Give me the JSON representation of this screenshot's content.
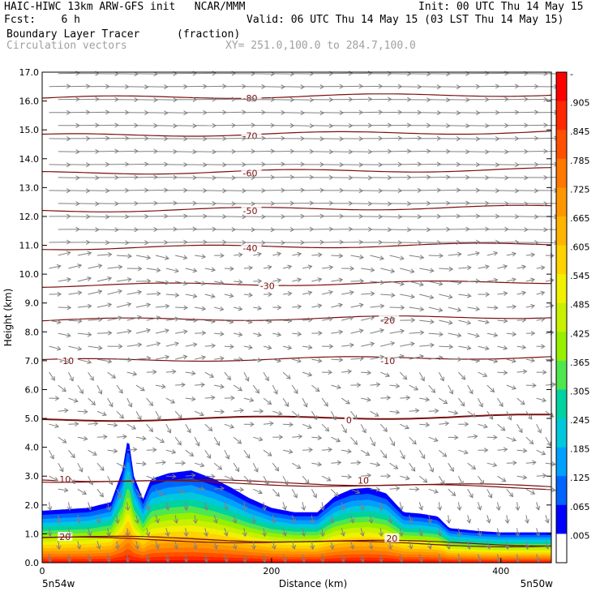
{
  "header": {
    "line1_left": "HAIC-HIWC 13km ARW-GFS init   NCAR/MMM",
    "line1_right": "Init: 00 UTC Thu 14 May 15",
    "fcst_label": "Fcst:    6 h",
    "valid": "Valid: 06 UTC Thu 14 May 15 (03 LST Thu 14 May 15)",
    "field1": "Boundary Layer Tracer",
    "field1_units": "(fraction)",
    "field2": "Circulation vectors",
    "cross_section": "XY= 251.0,100.0 to 284.7,100.0"
  },
  "colors": {
    "contour": "#7a0f0f",
    "vector": "#808080",
    "axis": "#000000"
  },
  "chart_data": {
    "type": "heatmap",
    "xlabel": "Distance (km)",
    "ylabel": "Height (km)",
    "xlim": [
      0,
      444
    ],
    "ylim": [
      0.0,
      17.0
    ],
    "x_ticks": [
      0,
      200,
      400
    ],
    "y_ticks": [
      "0.0",
      "1.0",
      "2.0",
      "3.0",
      "4.0",
      "5.0",
      "6.0",
      "7.0",
      "8.0",
      "9.0",
      "10.0",
      "11.0",
      "12.0",
      "13.0",
      "14.0",
      "15.0",
      "16.0",
      "17.0"
    ],
    "x_endpoint_labels": [
      "5n54w",
      "5n50w"
    ],
    "colorbar": {
      "labels": [
        "-",
        ".905",
        ".845",
        ".785",
        ".725",
        ".665",
        ".605",
        ".545",
        ".485",
        ".425",
        ".365",
        ".305",
        ".245",
        ".185",
        ".125",
        ".065",
        ".005"
      ],
      "colors": [
        "#ff0000",
        "#ff2800",
        "#ff5000",
        "#ff7800",
        "#ff9600",
        "#ffb400",
        "#ffd200",
        "#f0f000",
        "#c8f000",
        "#96f000",
        "#50e650",
        "#00d2a0",
        "#00c8dc",
        "#00a0ff",
        "#0064ff",
        "#0000ff",
        "#ffffff"
      ]
    },
    "tracer_top_profile": {
      "x": [
        0,
        20,
        40,
        60,
        70,
        75,
        80,
        88,
        95,
        110,
        130,
        150,
        165,
        180,
        200,
        220,
        240,
        255,
        270,
        285,
        300,
        315,
        330,
        345,
        355,
        380,
        400,
        444
      ],
      "y": [
        1.8,
        1.85,
        1.9,
        2.1,
        3.2,
        4.4,
        3.0,
        2.2,
        2.9,
        3.1,
        3.2,
        2.9,
        2.6,
        2.25,
        1.9,
        1.75,
        1.75,
        2.3,
        2.55,
        2.6,
        2.4,
        1.75,
        1.7,
        1.6,
        1.2,
        1.1,
        1.05,
        1.05
      ]
    },
    "temperature_contours": [
      {
        "label": "-80",
        "height": 16.1,
        "label_x": 175
      },
      {
        "label": "-70",
        "height": 14.8,
        "label_x": 175
      },
      {
        "label": "-60",
        "height": 13.5,
        "label_x": 175
      },
      {
        "label": "-50",
        "height": 12.2,
        "label_x": 175
      },
      {
        "label": "-40",
        "height": 10.9,
        "label_x": 175
      },
      {
        "label": "-30",
        "height": 9.6,
        "label_x": 190
      },
      {
        "label": "-20",
        "height": 8.4,
        "label_x": 295
      },
      {
        "label": "-10",
        "height": 7.0,
        "label_x": 15
      },
      {
        "label": "-10",
        "height": 7.0,
        "label_x": 295
      },
      {
        "label": "0",
        "height": 4.95,
        "label_x": 265
      },
      {
        "label": "10",
        "height": 2.9,
        "label_x": 15
      },
      {
        "label": "10",
        "height": 2.85,
        "label_x": 275
      },
      {
        "label": "20",
        "height": 0.9,
        "label_x": 15
      },
      {
        "label": "20",
        "height": 0.85,
        "label_x": 300
      }
    ]
  }
}
